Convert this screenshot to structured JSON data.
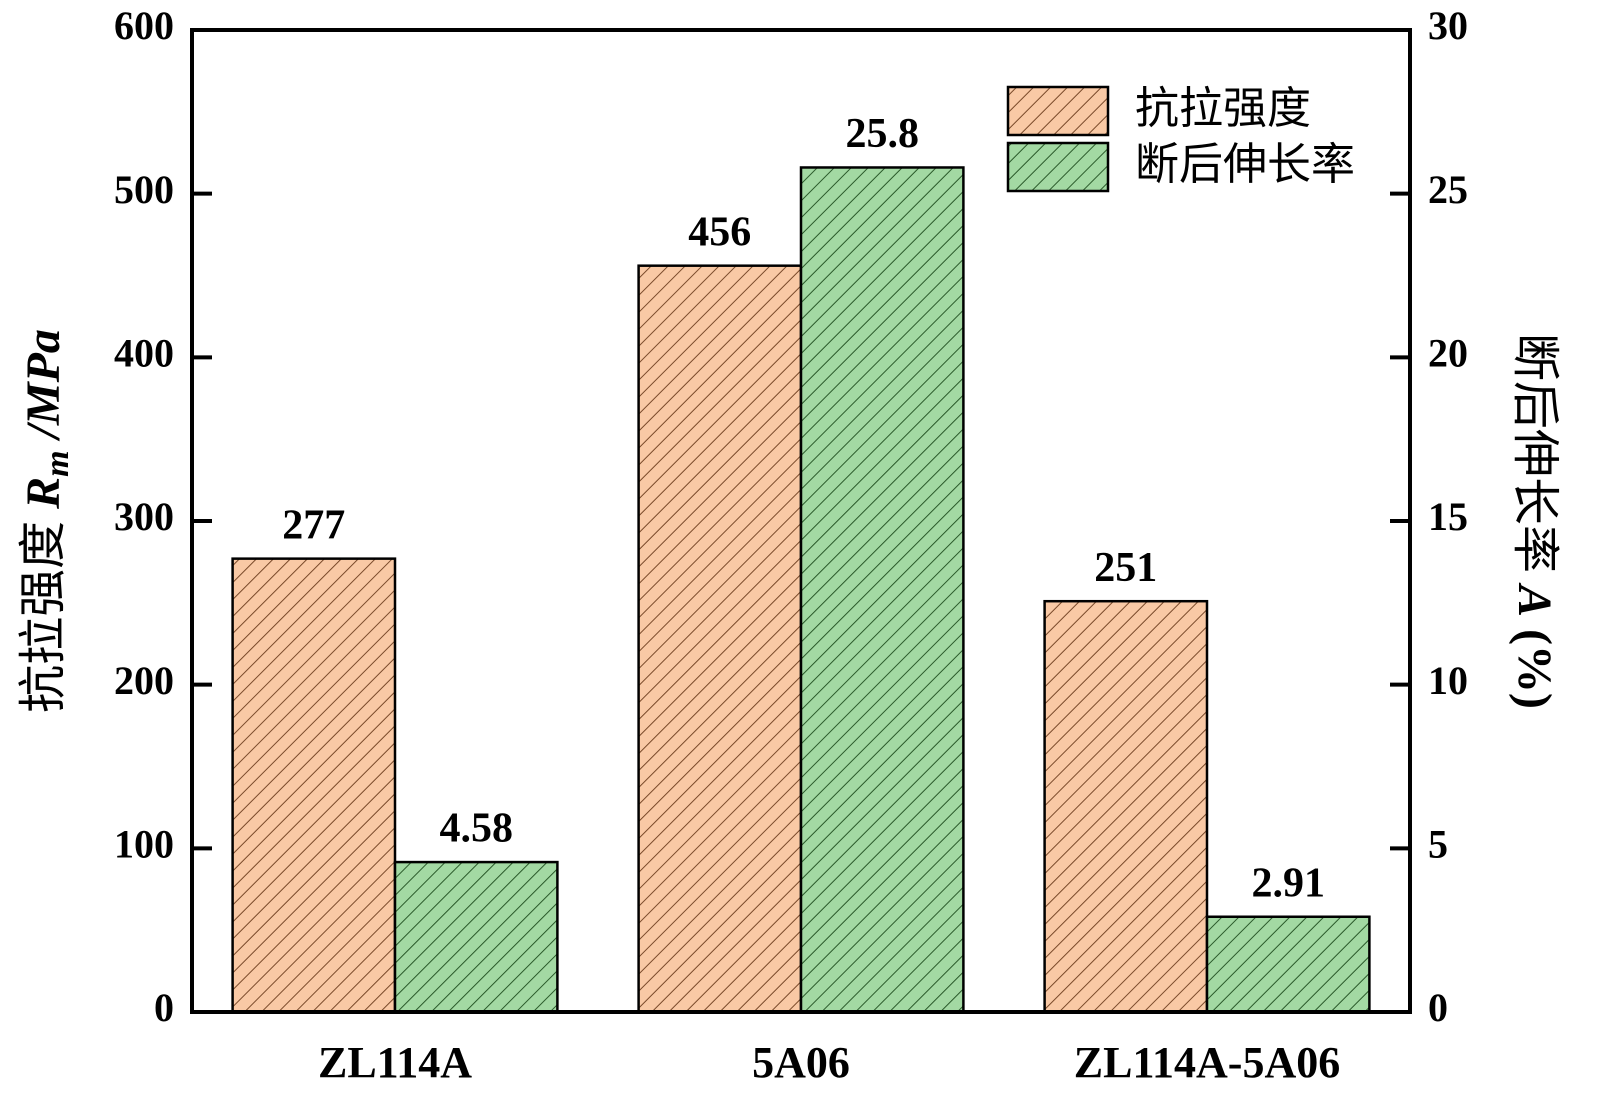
{
  "chart_data": {
    "type": "bar",
    "categories": [
      "ZL114A",
      "5A06",
      "ZL114A-5A06"
    ],
    "series": [
      {
        "name": "抗拉强度",
        "color": "#f9c9a5",
        "values": [
          277,
          456,
          251
        ]
      },
      {
        "name": "断后伸长率",
        "color": "#a3d9a3",
        "values": [
          4.58,
          25.8,
          2.91
        ],
        "axis": "y2"
      }
    ],
    "ylabel": [
      "抗拉强度 ",
      "R",
      "m",
      " /MPa"
    ],
    "y2label": [
      "断后伸长率 ",
      "A",
      " (%)"
    ],
    "ylim": [
      0,
      600
    ],
    "yticks": [
      0,
      100,
      200,
      300,
      400,
      500,
      600
    ],
    "y2lim": [
      0,
      30
    ],
    "y2ticks": [
      0,
      5,
      10,
      15,
      20,
      25,
      30
    ],
    "legend": "upper right"
  }
}
